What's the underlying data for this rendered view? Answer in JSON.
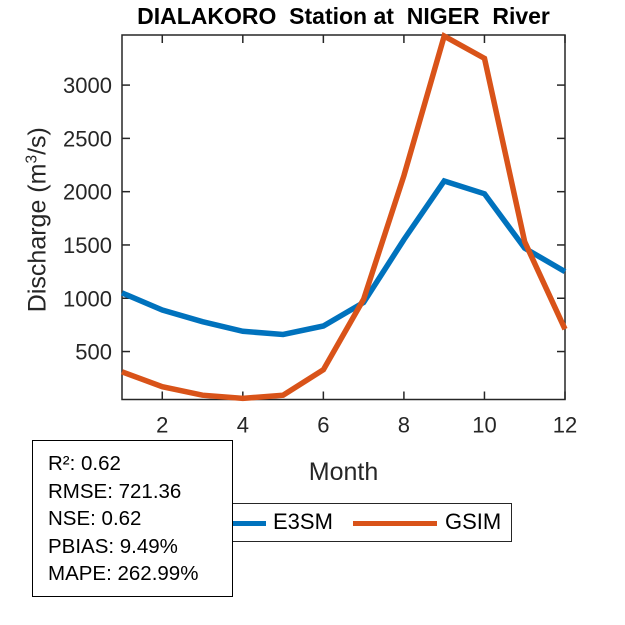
{
  "title": "DIALAKORO  Station at  NIGER  River",
  "labels": {
    "xlabel": "Month",
    "ylabel_prefix": "Discharge (m",
    "ylabel_sup": "3",
    "ylabel_suffix": "/s)"
  },
  "chart_data": {
    "type": "line",
    "title": "DIALAKORO Station at NIGER River",
    "xlabel": "Month",
    "ylabel": "Discharge (m^3/s)",
    "x": [
      1,
      2,
      3,
      4,
      5,
      6,
      7,
      8,
      9,
      10,
      11,
      12
    ],
    "series": [
      {
        "name": "E3SM",
        "color": "#0072BD",
        "values": [
          1050,
          890,
          780,
          690,
          660,
          740,
          960,
          1550,
          2100,
          1980,
          1470,
          1250
        ]
      },
      {
        "name": "GSIM",
        "color": "#D95319",
        "values": [
          310,
          170,
          90,
          60,
          90,
          330,
          990,
          2150,
          3460,
          3250,
          1530,
          710
        ]
      }
    ],
    "xticks": [
      2,
      4,
      6,
      8,
      10,
      12
    ],
    "yticks": [
      500,
      1000,
      1500,
      2000,
      2500,
      3000
    ],
    "xlim": [
      1,
      12
    ],
    "ylim": [
      50,
      3470
    ],
    "grid": false,
    "line_width": 5.5,
    "legend_position": "below-axes",
    "axis_color": "#262626"
  },
  "legend": {
    "items": [
      {
        "label": "E3SM",
        "color": "#0072BD"
      },
      {
        "label": "GSIM",
        "color": "#D95319"
      }
    ]
  },
  "stats_box": {
    "lines": [
      "R²: 0.62",
      "RMSE: 721.36",
      "NSE: 0.62",
      "PBIAS: 9.49%",
      "MAPE: 262.99%"
    ]
  }
}
